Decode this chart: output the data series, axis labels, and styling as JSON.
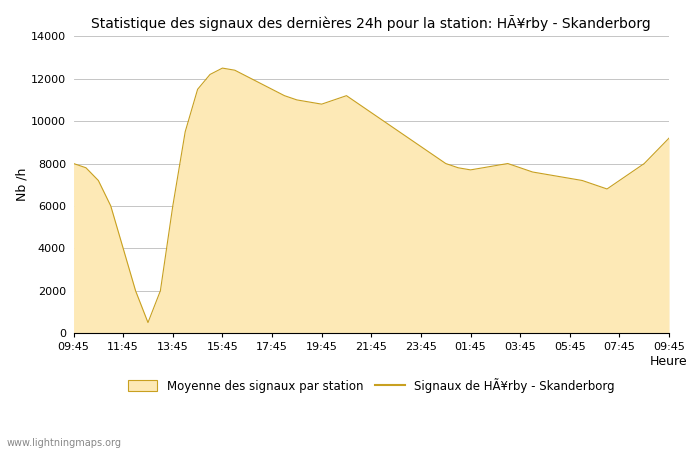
{
  "title": "Statistique des signaux des dernières 24h pour la station: HÃ¥rby - Skanderborg",
  "xlabel": "Heure",
  "ylabel": "Nb /h",
  "ylim": [
    0,
    14000
  ],
  "yticks": [
    0,
    2000,
    4000,
    6000,
    8000,
    10000,
    12000,
    14000
  ],
  "x_labels": [
    "09:45",
    "11:45",
    "13:45",
    "15:45",
    "17:45",
    "19:45",
    "21:45",
    "23:45",
    "01:45",
    "03:45",
    "05:45",
    "07:45",
    "09:45"
  ],
  "fill_color": "#fde9b6",
  "line_color": "#c8a020",
  "background_color": "#ffffff",
  "grid_color": "#bbbbbb",
  "watermark": "www.lightningmaps.org",
  "legend_fill_label": "Moyenne des signaux par station",
  "legend_line_label": "Signaux de HÃ¥rby - Skanderborg",
  "fill_values": [
    8000,
    7800,
    7200,
    6000,
    4000,
    2000,
    500,
    2000,
    6000,
    9500,
    11500,
    12200,
    12500,
    12400,
    12100,
    11800,
    11500,
    11200,
    11000,
    10900,
    10800,
    11000,
    11200,
    10800,
    10400,
    10000,
    9600,
    9200,
    8800,
    8400,
    8000,
    7800,
    7700,
    7800,
    7900,
    8000,
    7800,
    7600,
    7500,
    7400,
    7300,
    7200,
    7000,
    6800,
    7200,
    7600,
    8000,
    8600,
    9200
  ],
  "title_fontsize": 10,
  "tick_fontsize": 8,
  "label_fontsize": 9,
  "legend_fontsize": 8.5
}
